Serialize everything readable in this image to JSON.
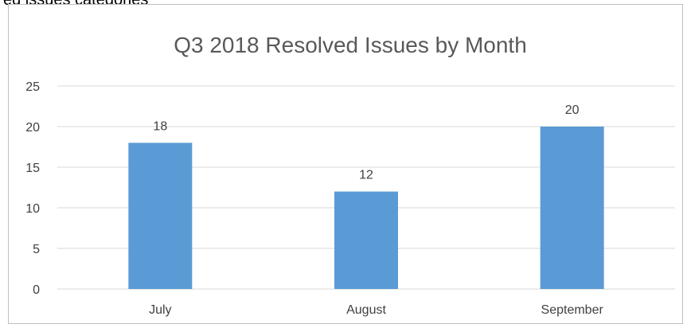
{
  "page": {
    "top_caption": "ed issues categories"
  },
  "chart_data": {
    "type": "bar",
    "title": "Q3 2018 Resolved Issues by Month",
    "xlabel": "",
    "ylabel": "",
    "categories": [
      "July",
      "August",
      "September"
    ],
    "values": [
      18,
      12,
      20
    ],
    "ylim": [
      0,
      25
    ],
    "yticks": [
      0,
      5,
      10,
      15,
      20,
      25
    ],
    "grid": true,
    "legend": "none",
    "colors": {
      "bar": "#5b9bd5",
      "grid": "#d9d9d9",
      "axis": "#d9d9d9"
    }
  }
}
